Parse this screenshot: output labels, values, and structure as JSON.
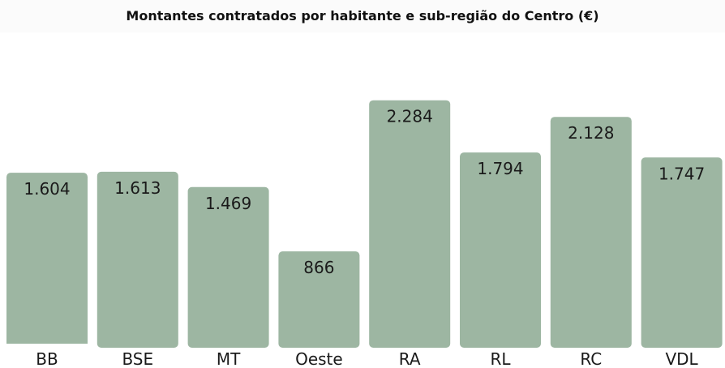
{
  "chart_data": {
    "type": "bar",
    "title": "Montantes contratados por habitante e sub-região do Centro (€)",
    "categories": [
      "BB",
      "BSE",
      "MT",
      "Oeste",
      "RA",
      "RL",
      "RC",
      "VDL"
    ],
    "values": [
      1604,
      1613,
      1469,
      866,
      2284,
      1794,
      2128,
      1747
    ],
    "value_labels": [
      "1.604",
      "1.613",
      "1.469",
      "866",
      "2.284",
      "1.794",
      "2.128",
      "1.747"
    ],
    "xlabel": "",
    "ylabel": "",
    "ylim": [
      0,
      2600
    ],
    "grid": false,
    "legend": "none",
    "colors": {
      "bar": "#9db6a2",
      "value_text": "#1a1a1a",
      "category_text": "#1a1a1a"
    }
  }
}
